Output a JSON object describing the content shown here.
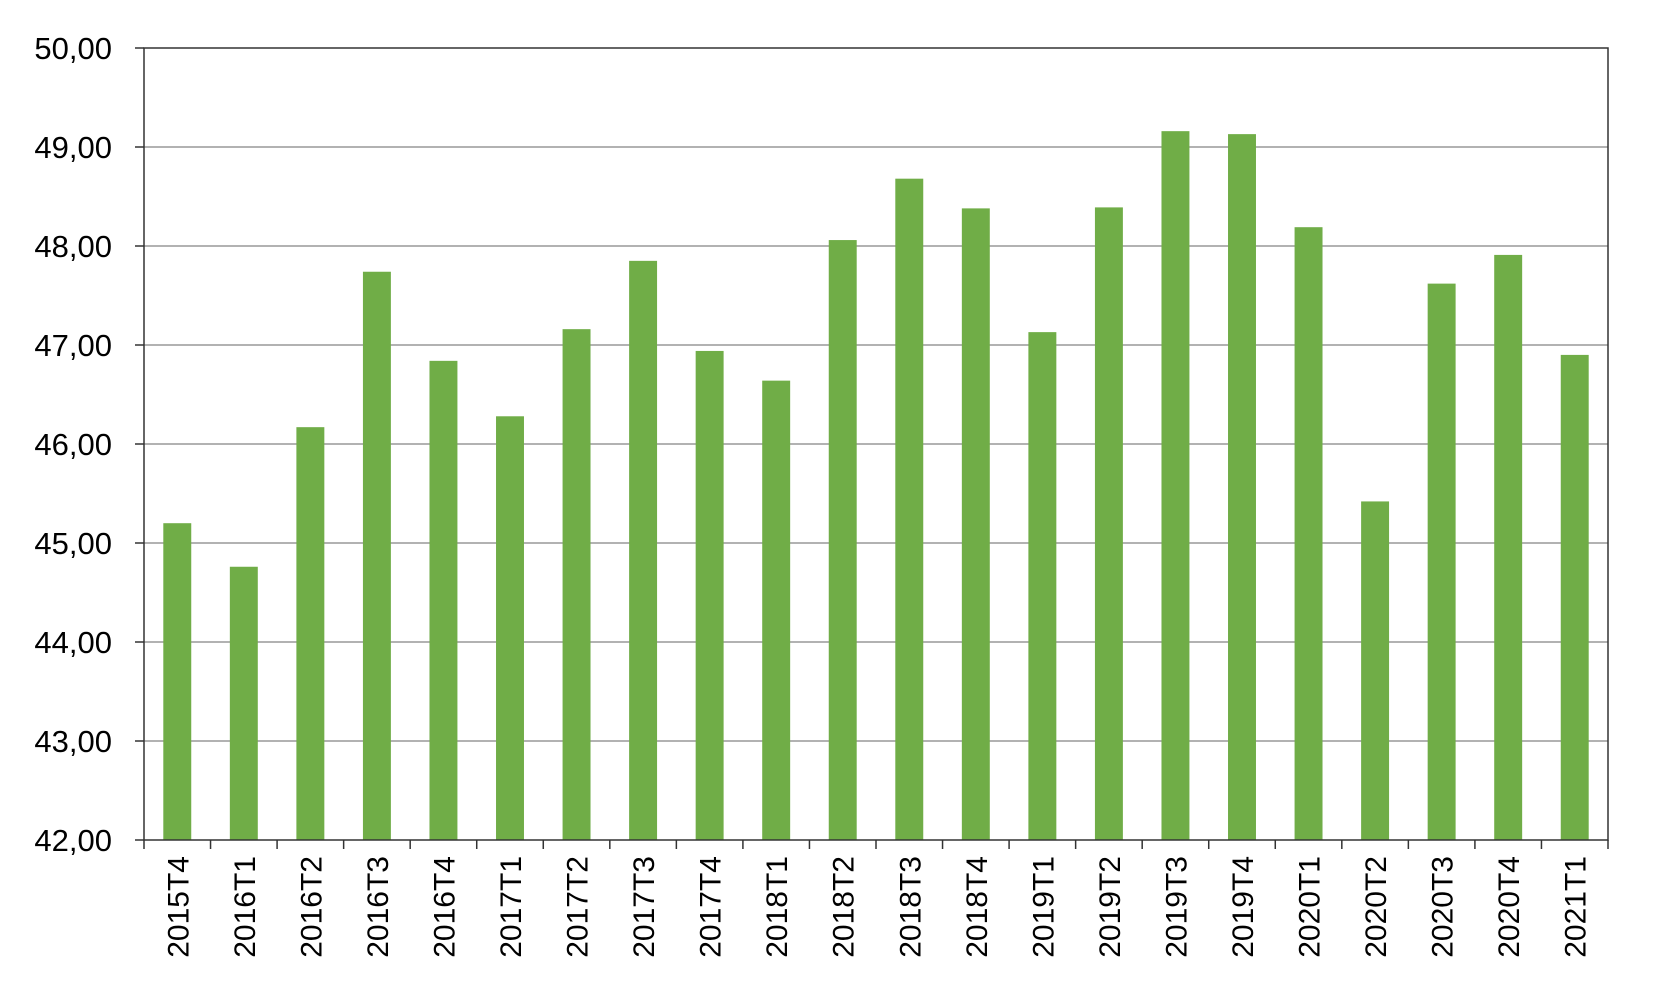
{
  "chart_data": {
    "type": "bar",
    "title": "",
    "xlabel": "",
    "ylabel": "",
    "categories": [
      "2015T4",
      "2016T1",
      "2016T2",
      "2016T3",
      "2016T4",
      "2017T1",
      "2017T2",
      "2017T3",
      "2017T4",
      "2018T1",
      "2018T2",
      "2018T3",
      "2018T4",
      "2019T1",
      "2019T2",
      "2019T3",
      "2019T4",
      "2020T1",
      "2020T2",
      "2020T3",
      "2020T4",
      "2021T1"
    ],
    "values": [
      45.2,
      44.76,
      46.17,
      47.74,
      46.84,
      46.28,
      47.16,
      47.85,
      46.94,
      46.64,
      48.06,
      48.68,
      48.38,
      47.13,
      48.39,
      49.16,
      49.13,
      48.19,
      45.42,
      47.62,
      47.91,
      46.9
    ],
    "ylim": [
      42,
      50
    ],
    "yticks": [
      "42,00",
      "43,00",
      "44,00",
      "45,00",
      "46,00",
      "47,00",
      "48,00",
      "49,00",
      "50,00"
    ],
    "grid": true,
    "legend": "none",
    "bar_color": "#70AD47",
    "grid_color": "#999999",
    "axis_color": "#333333"
  }
}
